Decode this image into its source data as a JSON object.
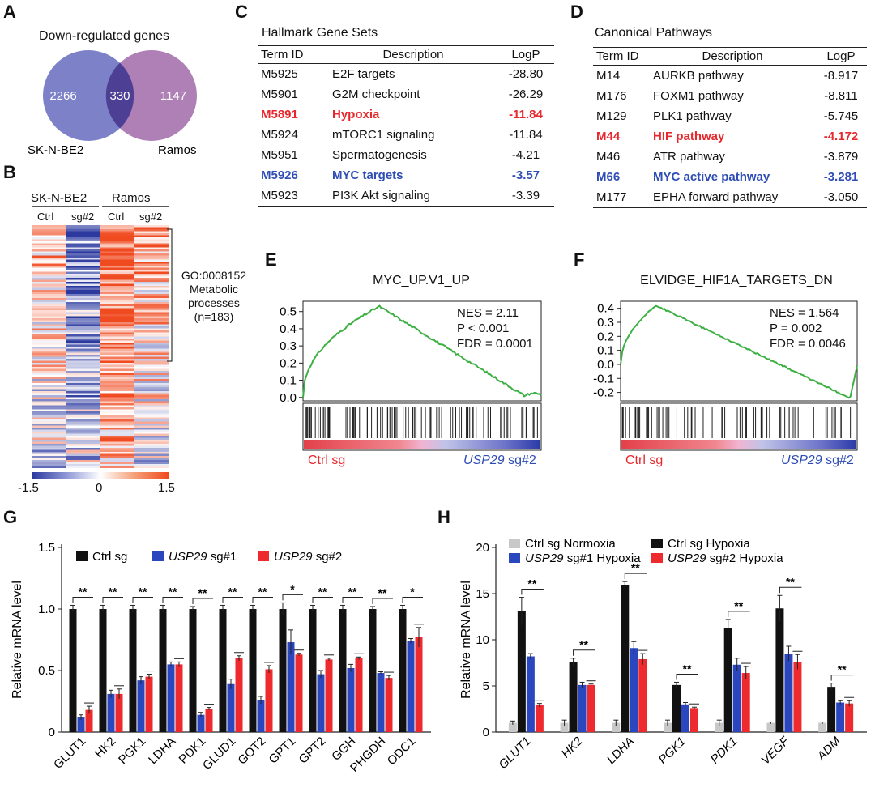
{
  "panels": {
    "a": "A",
    "b": "B",
    "c": "C",
    "d": "D",
    "e": "E",
    "f": "F",
    "g": "G",
    "h": "H"
  },
  "venn": {
    "title": "Down-regulated genes",
    "left_count": "2266",
    "overlap_count": "330",
    "right_count": "1147",
    "left_label": "SK-N-BE2",
    "right_label": "Ramos",
    "left_color": "#6f74c2",
    "right_color": "#a572ae"
  },
  "heatmap": {
    "group1": "SK-N-BE2",
    "group2": "Ramos",
    "col1": "Ctrl",
    "col2": "sg#2",
    "col3": "Ctrl",
    "col4": "sg#2",
    "go_id": "GO:0008152",
    "go_name1": "Metabolic",
    "go_name2": "processes",
    "go_count": "(n=183)",
    "scale_min": "-1.5",
    "scale_mid": "0",
    "scale_max": "1.5",
    "low_color": "#3040a8",
    "high_color": "#f04a20"
  },
  "hallmark": {
    "title": "Hallmark Gene Sets",
    "headers": [
      "Term ID",
      "Description",
      "LogP"
    ],
    "rows": [
      {
        "id": "M5925",
        "desc": "E2F targets",
        "logp": "-28.80",
        "style": ""
      },
      {
        "id": "M5901",
        "desc": "G2M checkpoint",
        "logp": "-26.29",
        "style": ""
      },
      {
        "id": "M5891",
        "desc": "Hypoxia",
        "logp": "-11.84",
        "style": "red"
      },
      {
        "id": "M5924",
        "desc": "mTORC1 signaling",
        "logp": "-11.84",
        "style": ""
      },
      {
        "id": "M5951",
        "desc": "Spermatogenesis",
        "logp": "-4.21",
        "style": ""
      },
      {
        "id": "M5926",
        "desc": "MYC targets",
        "logp": "-3.57",
        "style": "blue"
      },
      {
        "id": "M5923",
        "desc": "PI3K Akt signaling",
        "logp": "-3.39",
        "style": ""
      }
    ]
  },
  "canonical": {
    "title": "Canonical Pathways",
    "headers": [
      "Term ID",
      "Description",
      "LogP"
    ],
    "rows": [
      {
        "id": "M14",
        "desc": "AURKB pathway",
        "logp": "-8.917",
        "style": ""
      },
      {
        "id": "M176",
        "desc": "FOXM1 pathway",
        "logp": "-8.811",
        "style": ""
      },
      {
        "id": "M129",
        "desc": "PLK1 pathway",
        "logp": "-5.745",
        "style": ""
      },
      {
        "id": "M44",
        "desc": "HIF pathway",
        "logp": "-4.172",
        "style": "red"
      },
      {
        "id": "M46",
        "desc": "ATR pathway",
        "logp": "-3.879",
        "style": ""
      },
      {
        "id": "M66",
        "desc": "MYC active pathway",
        "logp": "-3.281",
        "style": "blue"
      },
      {
        "id": "M177",
        "desc": "EPHA forward pathway",
        "logp": "-3.050",
        "style": ""
      }
    ]
  },
  "gsea_e": {
    "title": "MYC_UP.V1_UP",
    "nes": "NES = 2.11",
    "p": "P < 0.001",
    "fdr": "FDR = 0.0001",
    "yticks": [
      "0.5",
      "0.4",
      "0.3",
      "0.2",
      "0.1",
      "0.0"
    ],
    "ctrl": "Ctrl sg",
    "usp": "USP29",
    "sg": "sg#2"
  },
  "gsea_f": {
    "title": "ELVIDGE_HIF1A_TARGETS_DN",
    "nes": "NES = 1.564",
    "p": "P = 0.002",
    "fdr": "FDR = 0.0046",
    "yticks": [
      "0.4",
      "0.3",
      "0.2",
      "0.1",
      "0.0",
      "-0.1",
      "-0.2"
    ],
    "ctrl": "Ctrl sg",
    "usp": "USP29",
    "sg": "sg#2"
  },
  "colors": {
    "black": "#111111",
    "blue": "#2a47c0",
    "red": "#ef2a2e",
    "grey": "#c8c8c8",
    "green": "#3cb043"
  },
  "chart_data": [
    {
      "type": "bar",
      "panel": "G",
      "ylabel": "Relative mRNA level",
      "ylim": [
        0,
        1.5
      ],
      "yticks": [
        "0",
        "0.5",
        "1.0",
        "1.5"
      ],
      "categories": [
        "GLUT1",
        "HK2",
        "PGK1",
        "LDHA",
        "PDK1",
        "GLUD1",
        "GOT2",
        "GPT1",
        "GPT2",
        "GGH",
        "PHGDH",
        "ODC1"
      ],
      "legend": [
        {
          "label": "Ctrl sg",
          "italic": "",
          "rest": ""
        },
        {
          "label": "",
          "italic": "USP29",
          "rest": " sg#1"
        },
        {
          "label": "",
          "italic": "USP29",
          "rest": " sg#2"
        }
      ],
      "series": [
        {
          "name": "Ctrl sg",
          "values": [
            1.0,
            1.0,
            1.0,
            1.0,
            1.0,
            1.0,
            1.0,
            1.0,
            1.0,
            1.0,
            1.0,
            1.0
          ]
        },
        {
          "name": "USP29 sg#1",
          "values": [
            0.12,
            0.31,
            0.42,
            0.55,
            0.14,
            0.39,
            0.26,
            0.73,
            0.47,
            0.52,
            0.48,
            0.74
          ]
        },
        {
          "name": "USP29 sg#2",
          "values": [
            0.18,
            0.31,
            0.45,
            0.55,
            0.19,
            0.6,
            0.51,
            0.63,
            0.59,
            0.6,
            0.44,
            0.77
          ]
        }
      ],
      "errors": [
        [
          0.03,
          0.03,
          0.03,
          0.03,
          0.02,
          0.03,
          0.03,
          0.05,
          0.03,
          0.03,
          0.02,
          0.03
        ],
        [
          0.02,
          0.03,
          0.03,
          0.02,
          0.02,
          0.04,
          0.03,
          0.1,
          0.03,
          0.03,
          0.01,
          0.02
        ],
        [
          0.03,
          0.04,
          0.02,
          0.02,
          0.01,
          0.02,
          0.03,
          0.01,
          0.01,
          0.01,
          0.02,
          0.08
        ]
      ],
      "significance": [
        "**",
        "**",
        "**",
        "**",
        "**",
        "**",
        "**",
        "*",
        "**",
        "**",
        "**",
        "*"
      ]
    },
    {
      "type": "bar",
      "panel": "H",
      "ylabel": "Relative mRNA level",
      "ylim": [
        0,
        20
      ],
      "yticks": [
        "0",
        "5",
        "10",
        "15",
        "20"
      ],
      "categories": [
        "GLUT1",
        "HK2",
        "LDHA",
        "PGK1",
        "PDK1",
        "VEGF",
        "ADM"
      ],
      "legend": [
        {
          "label": "Ctrl sg Normoxia",
          "italic": "",
          "rest": ""
        },
        {
          "label": "Ctrl sg Hypoxia",
          "italic": "",
          "rest": ""
        },
        {
          "label": "",
          "italic": "USP29",
          "rest": " sg#1 Hypoxia"
        },
        {
          "label": "",
          "italic": "USP29",
          "rest": " sg#2 Hypoxia"
        }
      ],
      "series": [
        {
          "name": "Ctrl sg Normoxia",
          "values": [
            1.0,
            1.0,
            1.0,
            1.0,
            1.0,
            1.0,
            1.0
          ]
        },
        {
          "name": "Ctrl sg Hypoxia",
          "values": [
            13.1,
            7.6,
            15.9,
            5.1,
            11.3,
            13.4,
            4.9
          ]
        },
        {
          "name": "USP29 sg#1 Hypoxia",
          "values": [
            8.2,
            5.1,
            9.1,
            3.0,
            7.3,
            8.5,
            3.2
          ]
        },
        {
          "name": "USP29 sg#2 Hypoxia",
          "values": [
            2.9,
            5.1,
            7.9,
            2.6,
            6.4,
            7.6,
            3.1
          ]
        }
      ],
      "errors": [
        [
          0.2,
          0.3,
          0.3,
          0.3,
          0.3,
          0.1,
          0.1
        ],
        [
          1.5,
          0.4,
          0.4,
          0.3,
          0.9,
          1.4,
          0.4
        ],
        [
          0.3,
          0.3,
          0.7,
          0.2,
          0.7,
          0.8,
          0.2
        ],
        [
          0.2,
          0.1,
          0.6,
          0.1,
          0.7,
          0.8,
          0.3
        ]
      ],
      "significance": [
        "**",
        "**",
        "**",
        "**",
        "**",
        "**",
        "**"
      ]
    }
  ]
}
